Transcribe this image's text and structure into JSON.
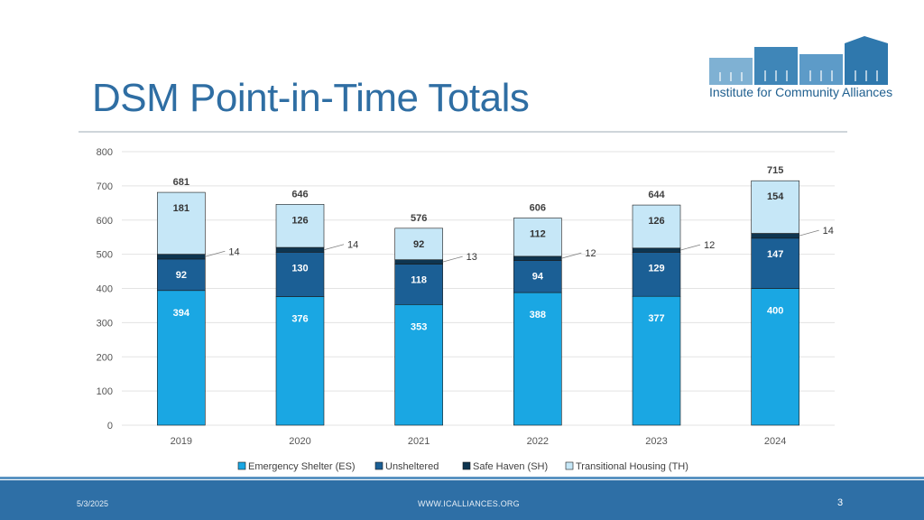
{
  "slide": {
    "title": "DSM Point-in-Time Totals",
    "logo_text": "Institute for Community Alliances",
    "footer": {
      "date": "5/3/2025",
      "website": "WWW.ICALLIANCES.ORG",
      "page_number": "3"
    }
  },
  "colors": {
    "title": "#2f6ea3",
    "es": "#1aa7e3",
    "unsheltered": "#1b5f95",
    "safe_haven": "#0e3550",
    "th": "#c6e7f7",
    "footer": "#2e6fa6"
  },
  "chart_data": {
    "type": "bar",
    "stacked": true,
    "categories": [
      "2019",
      "2020",
      "2021",
      "2022",
      "2023",
      "2024"
    ],
    "series": [
      {
        "name": "Emergency Shelter (ES)",
        "values": [
          394,
          376,
          353,
          388,
          377,
          400
        ]
      },
      {
        "name": "Unsheltered",
        "values": [
          92,
          130,
          118,
          94,
          129,
          147
        ]
      },
      {
        "name": "Safe Haven (SH)",
        "values": [
          14,
          14,
          13,
          12,
          12,
          14
        ]
      },
      {
        "name": "Transitional Housing (TH)",
        "values": [
          181,
          126,
          92,
          112,
          126,
          154
        ]
      }
    ],
    "totals": [
      681,
      646,
      576,
      606,
      644,
      715
    ],
    "ylim": [
      0,
      800
    ],
    "yticks": [
      "0",
      "100",
      "200",
      "300",
      "400",
      "500",
      "600",
      "700",
      "800"
    ],
    "grid": true,
    "legend": "bottom"
  }
}
